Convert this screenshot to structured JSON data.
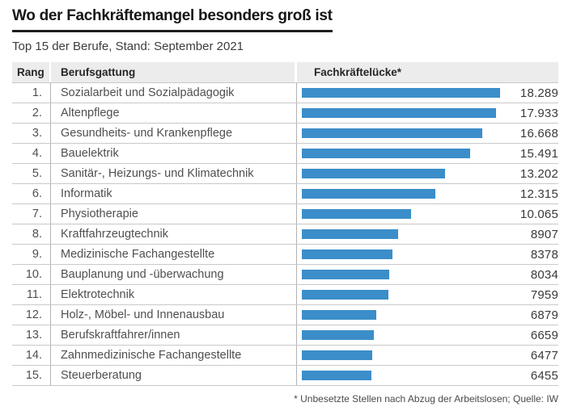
{
  "page": {
    "title": "Wo der Fachkräftemangel besonders groß ist",
    "subtitle": "Top 15 der Berufe, Stand: September 2021",
    "footnote": "* Unbesetzte Stellen nach Abzug der Arbeitslosen; Quelle: IW"
  },
  "table_header": {
    "rank": "Rang",
    "profession": "Berufsgattung",
    "gap": "Fachkräftelücke*"
  },
  "chart_data": {
    "type": "bar",
    "orientation": "horizontal",
    "title": "Wo der Fachkräftemangel besonders groß ist",
    "subtitle": "Top 15 der Berufe, Stand: September 2021",
    "xlabel": "Fachkräftelücke*",
    "xlim": [
      0,
      18289
    ],
    "grid": false,
    "legend": "none",
    "footnote": "* Unbesetzte Stellen nach Abzug der Arbeitslosen; Quelle: IW",
    "bar_color": "#3b8ec9",
    "ranks": [
      "1.",
      "2.",
      "3.",
      "4.",
      "5.",
      "6.",
      "7.",
      "8.",
      "9.",
      "10.",
      "11.",
      "12.",
      "13.",
      "14.",
      "15."
    ],
    "categories": [
      "Sozialarbeit und Sozialpädagogik",
      "Altenpflege",
      "Gesundheits- und Krankenpflege",
      "Bauelektrik",
      "Sanitär-, Heizungs- und Klimatechnik",
      "Informatik",
      "Physiotherapie",
      "Kraftfahrzeugtechnik",
      "Medizinische Fachangestellte",
      "Bauplanung und -überwachung",
      "Elektrotechnik",
      "Holz-, Möbel- und Innenausbau",
      "Berufskraftfahrer/innen",
      "Zahnmedizinische Fachangestellte",
      "Steuerberatung"
    ],
    "values": [
      18289,
      17933,
      16668,
      15491,
      13202,
      12315,
      10065,
      8907,
      8378,
      8034,
      7959,
      6879,
      6659,
      6477,
      6455
    ],
    "value_labels": [
      "18.289",
      "17.933",
      "16.668",
      "15.491",
      "13.202",
      "12.315",
      "10.065",
      "8907",
      "8378",
      "8034",
      "7959",
      "6879",
      "6659",
      "6477",
      "6455"
    ]
  },
  "colors": {
    "bar": "#3b8ec9",
    "header_bg": "#ececec",
    "row_line": "#c9c9c9",
    "column_line": "#b3b3b3",
    "title_text": "#161616",
    "body_text": "#4f4f4f"
  }
}
